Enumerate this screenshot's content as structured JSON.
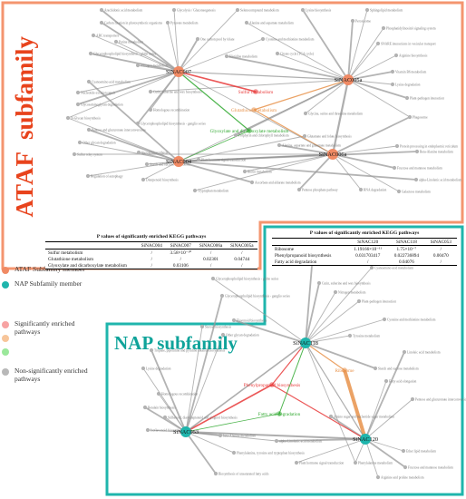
{
  "colors": {
    "ataf_border": "#f4956f",
    "nap_border": "#1fb5ac",
    "ataf_node": "#f08a64",
    "nap_node": "#1fb5ac",
    "title_ataf": "#e8431c",
    "title_nap": "#0fa39a",
    "sig_red": "#e83a3a",
    "sig_orange": "#f5b27a",
    "sig_green": "#6fe06f",
    "nonsig": "#b0b0b0"
  },
  "panels": {
    "ataf_title_1": "ATAF",
    "ataf_title_2": "subfamily",
    "nap_title": "NAP subfamily"
  },
  "legend": [
    {
      "label": "ATAF Subfamily member",
      "color": "#f08a64"
    },
    {
      "label": "NAP Subfamily member",
      "color": "#1fb5ac"
    },
    {
      "label": "Significantly enriched pathways",
      "color": "#f7a3a3"
    },
    {
      "label": "",
      "color": "#f7c59a"
    },
    {
      "label": "",
      "color": "#9be89b"
    },
    {
      "label": "Non-significantly enriched pathways",
      "color": "#b8b8b8"
    }
  ],
  "ataf": {
    "members": [
      {
        "id": "n7",
        "label": "SiNAC007"
      },
      {
        "id": "n5a",
        "label": "SiNAC005a"
      },
      {
        "id": "n4",
        "label": "SiNAC004"
      },
      {
        "id": "n6a",
        "label": "SiNAC006a"
      }
    ],
    "significant": [
      {
        "id": "s1",
        "label": "Sulfur metabolism",
        "color": "#e83a3a"
      },
      {
        "id": "s2",
        "label": "Glutathione metabolism",
        "color": "#e8924a"
      },
      {
        "id": "s3",
        "label": "Glyoxylate and dicarboxylate metabolism",
        "color": "#2fa82f"
      }
    ],
    "pathways": [
      {
        "id": "p1",
        "label": "Arachidonic acid metabolism"
      },
      {
        "id": "p2",
        "label": "Glycolysis / Gluconeogenesis"
      },
      {
        "id": "p3",
        "label": "Selenocompound metabolism"
      },
      {
        "id": "p4",
        "label": "Lysine biosynthesis"
      },
      {
        "id": "p5",
        "label": "Sphingolipid metabolism"
      },
      {
        "id": "p6",
        "label": "Carbon fixation in photosynthetic organisms"
      },
      {
        "id": "p7",
        "label": "Pyruvate metabolism"
      },
      {
        "id": "p8",
        "label": "Alanine and aspartate metabolism"
      },
      {
        "id": "p9",
        "label": "Peroxisome"
      },
      {
        "id": "p10",
        "label": "Phosphatidylinositol signaling system"
      },
      {
        "id": "p11",
        "label": "ABC transporters"
      },
      {
        "id": "p12",
        "label": "One carbon pool by folate"
      },
      {
        "id": "p13",
        "label": "Purine metabolism"
      },
      {
        "id": "p14",
        "label": "Cysteine and methionine metabolism"
      },
      {
        "id": "p15",
        "label": "SNARE interactions in vesicular transport"
      },
      {
        "id": "p16",
        "label": "Glycerophospholipid biosynthesis - globo series"
      },
      {
        "id": "p17",
        "label": "Histidine metabolism"
      },
      {
        "id": "p18",
        "label": "Citrate cycle (TCA cycle)"
      },
      {
        "id": "p19",
        "label": "Arginine biosynthesis"
      },
      {
        "id": "p20",
        "label": "Nitrogen metabolism"
      },
      {
        "id": "p21",
        "label": "Vitamin B6 metabolism"
      },
      {
        "id": "p22",
        "label": "Cyanoamino acid metabolism"
      },
      {
        "id": "p23",
        "label": "Nucleotide excision repair"
      },
      {
        "id": "p24",
        "label": "Cutin, suberine and wax biosynthesis"
      },
      {
        "id": "p25",
        "label": "Lysine degradation"
      },
      {
        "id": "p26",
        "label": "Plant-pathogen interaction"
      },
      {
        "id": "p27",
        "label": "Glycosaminoglycan degradation"
      },
      {
        "id": "p28",
        "label": "Homologous recombination"
      },
      {
        "id": "p29",
        "label": "Glycine, serine and threonine metabolism"
      },
      {
        "id": "p30",
        "label": "Phagosome"
      },
      {
        "id": "p31",
        "label": "N-Glycan biosynthesis"
      },
      {
        "id": "p32",
        "label": "Glycerophospholipid biosynthesis - ganglio series"
      },
      {
        "id": "p33",
        "label": "Porphyrin and chlorophyll metabolism"
      },
      {
        "id": "p34",
        "label": "Glutamate and folate biosynthesis"
      },
      {
        "id": "p35",
        "label": "Pentose and glucuronate interconversions"
      },
      {
        "id": "p36",
        "label": "Other glycan degradation"
      },
      {
        "id": "p37",
        "label": "Steroid biosynthesis"
      },
      {
        "id": "p38",
        "label": "Alanine, aspartate and glutamate metabolism"
      },
      {
        "id": "p39",
        "label": "Protein processing in endoplasmic reticulum"
      },
      {
        "id": "p40",
        "label": "Sulfur relay system"
      },
      {
        "id": "p41",
        "label": "Beta-Alanine metabolism"
      },
      {
        "id": "p42",
        "label": "Starch and sucrose metabolism"
      },
      {
        "id": "p43",
        "label": "Plant hormone signal transduction"
      },
      {
        "id": "p44",
        "label": "Fructose and mannose metabolism"
      },
      {
        "id": "p45",
        "label": "Biotin metabolism"
      },
      {
        "id": "p46",
        "label": "alpha-Linolenic acid metabolism"
      },
      {
        "id": "p47",
        "label": "Regulation of autophagy"
      },
      {
        "id": "p48",
        "label": "Diterpenoid biosynthesis"
      },
      {
        "id": "p49",
        "label": "Ascorbate and aldarate metabolism"
      },
      {
        "id": "p50",
        "label": "Galactose metabolism"
      },
      {
        "id": "p51",
        "label": "Pentose phosphate pathway"
      },
      {
        "id": "p52",
        "label": "Tryptophan metabolism"
      },
      {
        "id": "p53",
        "label": "RNA degradation"
      }
    ],
    "table": {
      "caption": "P values of significantly enriched KEGG pathways",
      "columns": [
        "",
        "SiNAC004",
        "SiNAC007",
        "SiNAC006a",
        "SiNAC005a"
      ],
      "rows": [
        [
          "Sulfur metabolism",
          "/",
          "3.58×10⁻¹⁰",
          "/",
          "/"
        ],
        [
          "Glutathione metabolism",
          "/",
          "/",
          "0.02301",
          "0.04744"
        ],
        [
          "Glyoxylate and dicarboxylate metabolism",
          "/",
          "0.03106",
          "/",
          "/"
        ]
      ]
    }
  },
  "nap": {
    "members": [
      {
        "id": "m118",
        "label": "SiNAC118"
      },
      {
        "id": "m053",
        "label": "SiNAC053"
      },
      {
        "id": "m120",
        "label": "SiNAC120"
      }
    ],
    "significant": [
      {
        "id": "q1",
        "label": "Phenylpropanoid biosynthesis",
        "color": "#e83a3a"
      },
      {
        "id": "q2",
        "label": "Ribosome",
        "color": "#e8924a"
      },
      {
        "id": "q3",
        "label": "Fatty acid degradation",
        "color": "#2fa82f"
      }
    ],
    "pathways": [
      {
        "id": "r1",
        "label": "Pyrimidine metabolism"
      },
      {
        "id": "r2",
        "label": "Cyanoamino acid metabolism"
      },
      {
        "id": "r3",
        "label": "Glycerophospholipid biosynthesis - globo series"
      },
      {
        "id": "r4",
        "label": "Cutin, suberine and wax biosynthesis"
      },
      {
        "id": "r5",
        "label": "Nitrogen metabolism"
      },
      {
        "id": "r6",
        "label": "Glycerophospholipid biosynthesis - ganglio series"
      },
      {
        "id": "r7",
        "label": "Plant-pathogen interaction"
      },
      {
        "id": "r8",
        "label": "Flavonoid biosynthesis"
      },
      {
        "id": "r9",
        "label": "Cysteine and methionine metabolism"
      },
      {
        "id": "r10",
        "label": "Steroid biosynthesis"
      },
      {
        "id": "r11",
        "label": "Other glycan degradation"
      },
      {
        "id": "r12",
        "label": "Tropane, piperidine and pyridine alkaloid biosynthesis"
      },
      {
        "id": "r13",
        "label": "Tyrosine metabolism"
      },
      {
        "id": "r14",
        "label": "Linoleic acid metabolism"
      },
      {
        "id": "r15",
        "label": "Lysine degradation"
      },
      {
        "id": "r16",
        "label": "Starch and sucrose metabolism"
      },
      {
        "id": "r17",
        "label": "Fatty acid elongation"
      },
      {
        "id": "r18",
        "label": "Homologous recombination"
      },
      {
        "id": "r19",
        "label": "Pentose and glucuronate interconversions"
      },
      {
        "id": "r20",
        "label": "Betalain biosynthesis"
      },
      {
        "id": "r21",
        "label": "Stilbenoid, diarylheptanoid and gingerol biosynthesis"
      },
      {
        "id": "r22",
        "label": "Amino sugar and nucleotide sugar metabolism"
      },
      {
        "id": "r23",
        "label": "Isoflavonoid biosynthesis"
      },
      {
        "id": "r24",
        "label": "beta-Alanine metabolism"
      },
      {
        "id": "r25",
        "label": "Phenylalanine metabolism"
      },
      {
        "id": "r26",
        "label": "alpha-Linolenic acid metabolism"
      },
      {
        "id": "r27",
        "label": "Ether lipid metabolism"
      },
      {
        "id": "r28",
        "label": "Phenylalanine, tyrosine and tryptophan biosynthesis"
      },
      {
        "id": "r29",
        "label": "Plant hormone signal transduction"
      },
      {
        "id": "r30",
        "label": "Fructose and mannose metabolism"
      },
      {
        "id": "r31",
        "label": "Biosynthesis of unsaturated fatty acids"
      },
      {
        "id": "r32",
        "label": "Arginine and proline metabolism"
      }
    ],
    "table": {
      "caption": "P values of significantly enriched KEGG pathways",
      "columns": [
        "",
        "SiNAC120",
        "SiNAC118",
        "SiNAC053"
      ],
      "rows": [
        [
          "Ribosome",
          "1.19166×10⁻¹¹",
          "1.75×10⁻⁷",
          "/"
        ],
        [
          "Phenylpropanoid biosynthesis",
          "0.031703417",
          "0.022736894",
          "0.00470"
        ],
        [
          "Fatty acid degradation",
          "/",
          "0.04076",
          "/"
        ]
      ]
    }
  }
}
